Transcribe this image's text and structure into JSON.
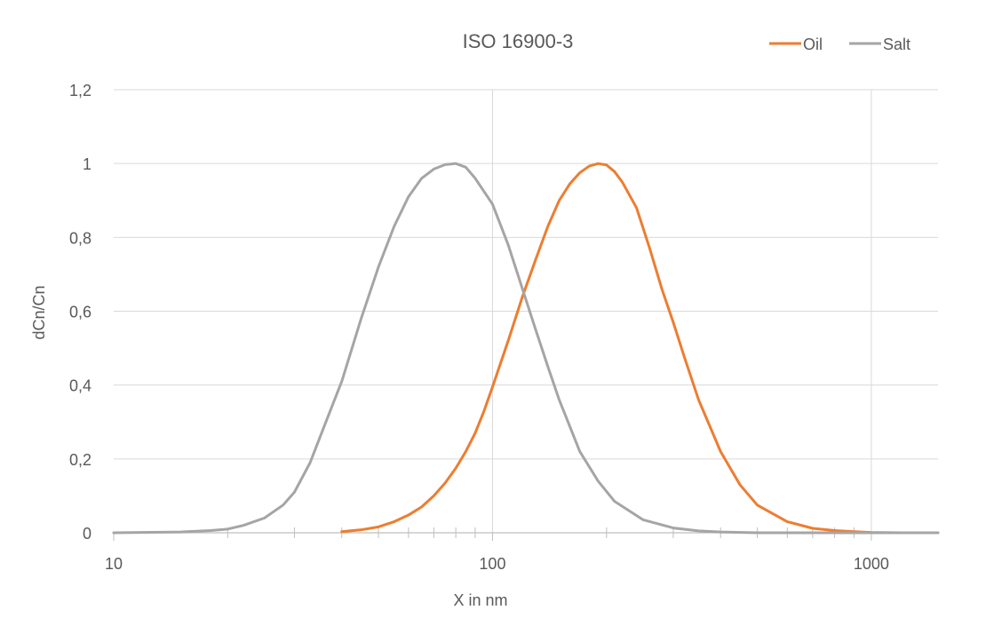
{
  "chart_data": {
    "type": "line",
    "title": "ISO 16900-3",
    "xlabel": "X in nm",
    "ylabel": "dCn/Cn",
    "xscale": "log",
    "xlim": [
      10,
      1500
    ],
    "ylim": [
      0,
      1.2
    ],
    "x_ticks": [
      {
        "value": 10,
        "label": "10"
      },
      {
        "value": 100,
        "label": "100"
      },
      {
        "value": 1000,
        "label": "1000"
      }
    ],
    "y_ticks": [
      {
        "value": 0,
        "label": "0"
      },
      {
        "value": 0.2,
        "label": "0,2"
      },
      {
        "value": 0.4,
        "label": "0,4"
      },
      {
        "value": 0.6,
        "label": "0,6"
      },
      {
        "value": 0.8,
        "label": "0,8"
      },
      {
        "value": 1.0,
        "label": "1"
      },
      {
        "value": 1.2,
        "label": "1,2"
      }
    ],
    "grid": true,
    "legend_position": "top-right",
    "series": [
      {
        "name": "Oil",
        "color": "#ED7D31",
        "points": [
          [
            40,
            0.003
          ],
          [
            45,
            0.008
          ],
          [
            50,
            0.016
          ],
          [
            55,
            0.03
          ],
          [
            60,
            0.048
          ],
          [
            65,
            0.07
          ],
          [
            70,
            0.1
          ],
          [
            75,
            0.135
          ],
          [
            80,
            0.175
          ],
          [
            85,
            0.22
          ],
          [
            90,
            0.27
          ],
          [
            95,
            0.33
          ],
          [
            100,
            0.395
          ],
          [
            110,
            0.52
          ],
          [
            120,
            0.64
          ],
          [
            130,
            0.74
          ],
          [
            140,
            0.83
          ],
          [
            150,
            0.9
          ],
          [
            160,
            0.945
          ],
          [
            170,
            0.975
          ],
          [
            180,
            0.993
          ],
          [
            190,
            1.0
          ],
          [
            200,
            0.996
          ],
          [
            210,
            0.978
          ],
          [
            220,
            0.95
          ],
          [
            240,
            0.88
          ],
          [
            260,
            0.77
          ],
          [
            280,
            0.66
          ],
          [
            300,
            0.57
          ],
          [
            320,
            0.48
          ],
          [
            350,
            0.36
          ],
          [
            400,
            0.22
          ],
          [
            450,
            0.13
          ],
          [
            500,
            0.075
          ],
          [
            600,
            0.03
          ],
          [
            700,
            0.012
          ],
          [
            800,
            0.006
          ],
          [
            900,
            0.003
          ],
          [
            1000,
            0.001
          ],
          [
            1200,
            0.0
          ],
          [
            1500,
            0.0
          ]
        ]
      },
      {
        "name": "Salt",
        "color": "#A5A5A5",
        "points": [
          [
            10,
            0.0
          ],
          [
            15,
            0.002
          ],
          [
            18,
            0.006
          ],
          [
            20,
            0.01
          ],
          [
            22,
            0.02
          ],
          [
            25,
            0.04
          ],
          [
            28,
            0.075
          ],
          [
            30,
            0.11
          ],
          [
            33,
            0.19
          ],
          [
            36,
            0.29
          ],
          [
            40,
            0.41
          ],
          [
            45,
            0.58
          ],
          [
            50,
            0.72
          ],
          [
            55,
            0.83
          ],
          [
            60,
            0.91
          ],
          [
            65,
            0.96
          ],
          [
            70,
            0.985
          ],
          [
            75,
            0.997
          ],
          [
            80,
            1.0
          ],
          [
            85,
            0.99
          ],
          [
            90,
            0.96
          ],
          [
            100,
            0.89
          ],
          [
            110,
            0.78
          ],
          [
            120,
            0.66
          ],
          [
            130,
            0.55
          ],
          [
            140,
            0.45
          ],
          [
            150,
            0.36
          ],
          [
            170,
            0.22
          ],
          [
            190,
            0.14
          ],
          [
            210,
            0.085
          ],
          [
            250,
            0.035
          ],
          [
            300,
            0.013
          ],
          [
            350,
            0.005
          ],
          [
            400,
            0.002
          ],
          [
            500,
            0.0
          ],
          [
            700,
            0.0
          ],
          [
            1000,
            0.0
          ],
          [
            1500,
            0.0
          ]
        ]
      }
    ]
  }
}
